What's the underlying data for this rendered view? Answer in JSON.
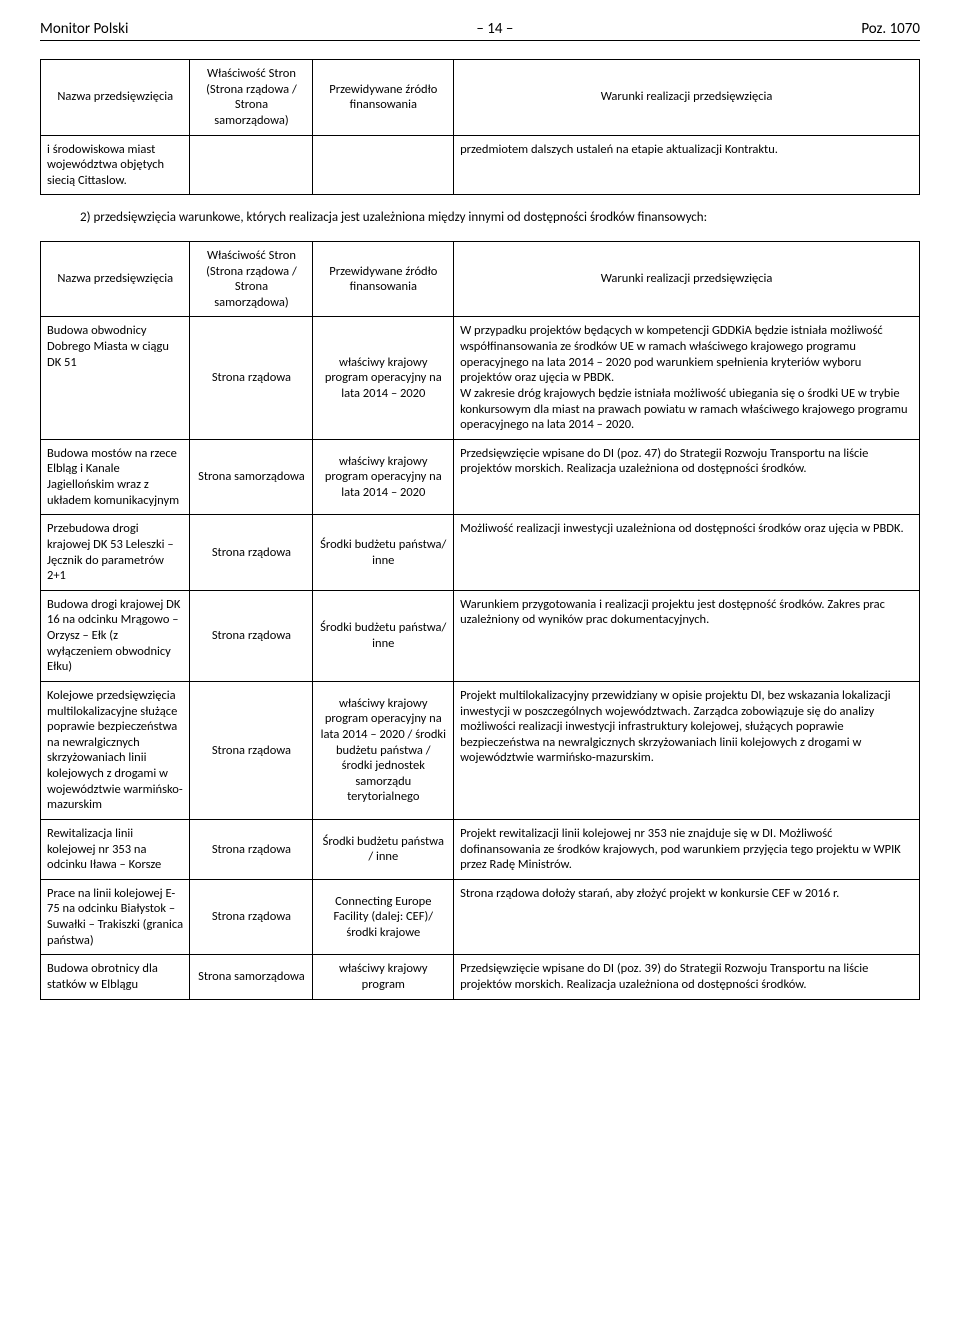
{
  "header": {
    "left": "Monitor Polski",
    "mid": "– 14 –",
    "right": "Poz. 1070"
  },
  "table1": {
    "headers": {
      "c1": "Nazwa przedsięwzięcia",
      "c2": "Właściwość Stron (Strona rządowa / Strona samorządowa)",
      "c3": "Przewidywane źródło finansowania",
      "c4": "Warunki realizacji przedsięwzięcia"
    },
    "row": {
      "c1": "i środowiskowa miast województwa objętych siecią Cittaslow.",
      "c2": "",
      "c3": "",
      "c4": "przedmiotem dalszych ustaleń na etapie aktualizacji Kontraktu."
    }
  },
  "section_note": "2) przedsięwzięcia warunkowe, których realizacja jest uzależniona między innymi od dostępności środków finansowych:",
  "table2": {
    "headers": {
      "c1": "Nazwa przedsięwzięcia",
      "c2": "Właściwość Stron (Strona rządowa / Strona samorządowa)",
      "c3": "Przewidywane źródło finansowania",
      "c4": "Warunki realizacji przedsięwzięcia"
    },
    "rows": [
      {
        "c1": "Budowa obwodnicy Dobrego Miasta w ciągu DK 51",
        "c2": "Strona rządowa",
        "c3": "właściwy krajowy program operacyjny na lata 2014 – 2020",
        "c4": "W przypadku projektów będących w kompetencji GDDKiA będzie istniała możliwość współfinansowania ze środków UE w ramach właściwego krajowego programu operacyjnego na lata 2014 – 2020 pod warunkiem spełnienia kryteriów wyboru projektów oraz ujęcia w PBDK.\nW zakresie dróg krajowych będzie istniała możliwość ubiegania się o środki UE w trybie konkursowym dla miast na prawach powiatu w ramach właściwego krajowego programu operacyjnego na lata 2014 – 2020."
      },
      {
        "c1": "Budowa mostów na rzece Elbląg i Kanale Jagiellońskim wraz z układem komunikacyjnym",
        "c2": "Strona samorządowa",
        "c3": "właściwy krajowy program operacyjny na lata 2014 – 2020",
        "c4": "Przedsięwzięcie wpisane do DI (poz. 47) do Strategii Rozwoju Transportu na liście projektów morskich. Realizacja uzależniona od dostępności środków."
      },
      {
        "c1": "Przebudowa drogi krajowej DK 53 Leleszki – Jęcznik do parametrów 2+1",
        "c2": "Strona rządowa",
        "c3": "Środki budżetu państwa/ inne",
        "c4": "Możliwość realizacji inwestycji uzależniona od dostępności środków oraz ujęcia w PBDK."
      },
      {
        "c1": "Budowa drogi krajowej DK 16 na odcinku Mrągowo – Orzysz – Ełk (z wyłączeniem obwodnicy Ełku)",
        "c2": "Strona rządowa",
        "c3": "Środki budżetu państwa/ inne",
        "c4": "Warunkiem przygotowania i realizacji projektu jest dostępność środków. Zakres prac uzależniony od wyników prac dokumentacyjnych."
      },
      {
        "c1": "Kolejowe przedsięwzięcia multilokalizacyjne służące poprawie bezpieczeństwa na newralgicznych skrzyżowaniach linii kolejowych z drogami w województwie warmińsko-mazurskim",
        "c2": "Strona rządowa",
        "c3": "właściwy krajowy program operacyjny na lata 2014 – 2020 / środki budżetu państwa / środki jednostek samorządu terytorialnego",
        "c4": "Projekt multilokalizacyjny przewidziany w opisie projektu DI, bez wskazania lokalizacji inwestycji w poszczególnych województwach. Zarządca zobowiązuje się do analizy możliwości realizacji inwestycji infrastruktury kolejowej, służących poprawie bezpieczeństwa na newralgicznych skrzyżowaniach linii kolejowych z drogami w województwie warmińsko-mazurskim."
      },
      {
        "c1": "Rewitalizacja linii kolejowej nr 353 na odcinku Iława – Korsze",
        "c2": "Strona rządowa",
        "c3": "Środki budżetu państwa / inne",
        "c4": "Projekt rewitalizacji linii kolejowej nr 353 nie znajduje się w DI. Możliwość dofinansowania ze środków krajowych, pod warunkiem przyjęcia tego projektu w WPIK przez Radę Ministrów."
      },
      {
        "c1": "Prace na linii kolejowej E-75 na odcinku Białystok – Suwałki – Trakiszki (granica państwa)",
        "c2": "Strona rządowa",
        "c3": "Connecting Europe Facility (dalej: CEF)/ środki krajowe",
        "c4": "Strona rządowa dołoży starań, aby złożyć projekt w konkursie CEF w 2016 r."
      },
      {
        "c1": "Budowa obrotnicy dla statków w Elblągu",
        "c2": "Strona samorządowa",
        "c3": "właściwy krajowy program",
        "c4": "Przedsięwzięcie wpisane do DI (poz. 39) do Strategii Rozwoju Transportu na liście projektów morskich. Realizacja uzależniona od dostępności środków."
      }
    ]
  }
}
